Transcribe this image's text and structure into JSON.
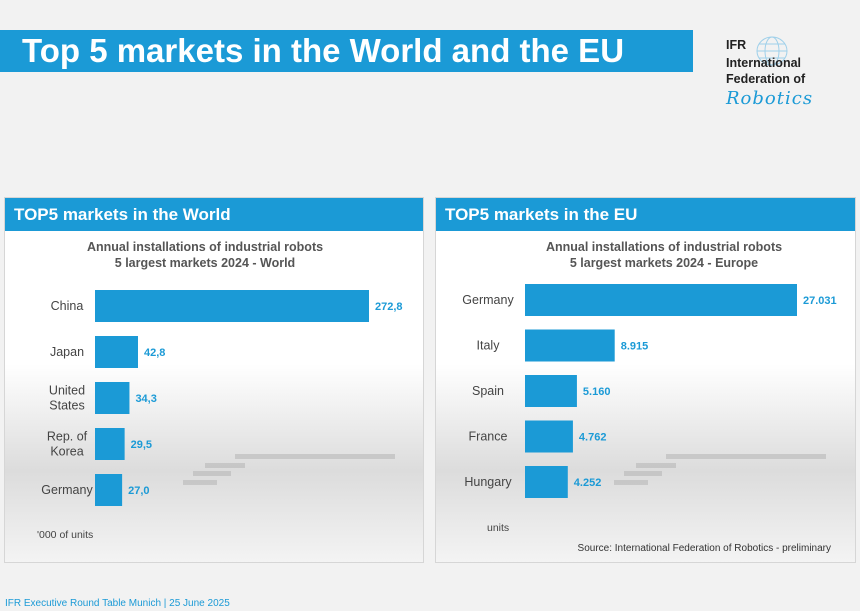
{
  "header": {
    "title": "Top 5 markets in the World and the EU",
    "logo": {
      "line1": "IFR",
      "line2": "International",
      "line3": "Federation of",
      "script": "Robotics",
      "icon": "globe-icon"
    }
  },
  "panels": {
    "world": {
      "header": "TOP5 markets in the World"
    },
    "eu": {
      "header": "TOP5 markets in the EU"
    }
  },
  "footer": {
    "text": "IFR Executive Round Table Munich | 25 June 2025"
  },
  "colors": {
    "accent": "#1b9ad6",
    "label": "#444444",
    "value": "#1b9ad6"
  },
  "chart_data": [
    {
      "type": "bar",
      "orientation": "horizontal",
      "title": "Annual installations of industrial robots",
      "subtitle": "5 largest markets 2024 - World",
      "categories": [
        "China",
        "Japan",
        "United States",
        "Rep. of Korea",
        "Germany"
      ],
      "category_lines": [
        [
          "China"
        ],
        [
          "Japan"
        ],
        [
          "United",
          "States"
        ],
        [
          "Rep. of",
          "Korea"
        ],
        [
          "Germany"
        ]
      ],
      "values": [
        272.8,
        42.8,
        34.3,
        29.5,
        27.0
      ],
      "value_labels": [
        "272,8",
        "42,8",
        "34,3",
        "29,5",
        "27,0"
      ],
      "unit_note": "'000 of units",
      "xlim": [
        0,
        272.8
      ],
      "grid": false
    },
    {
      "type": "bar",
      "orientation": "horizontal",
      "title": "Annual installations of industrial robots",
      "subtitle": "5 largest markets 2024 - Europe",
      "categories": [
        "Germany",
        "Italy",
        "Spain",
        "France",
        "Hungary"
      ],
      "category_lines": [
        [
          "Germany"
        ],
        [
          "Italy"
        ],
        [
          "Spain"
        ],
        [
          "France"
        ],
        [
          "Hungary"
        ]
      ],
      "values": [
        27031,
        8915,
        5160,
        4762,
        4252
      ],
      "value_labels": [
        "27.031",
        "8.915",
        "5.160",
        "4.762",
        "4.252"
      ],
      "unit_note": "units",
      "source": "Source: International Federation of Robotics - preliminary",
      "xlim": [
        0,
        27031
      ],
      "grid": false
    }
  ]
}
